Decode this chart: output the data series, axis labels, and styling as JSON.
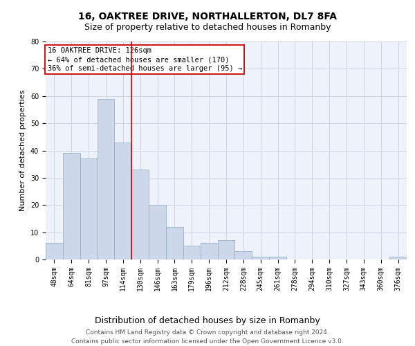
{
  "title": "16, OAKTREE DRIVE, NORTHALLERTON, DL7 8FA",
  "subtitle": "Size of property relative to detached houses in Romanby",
  "xlabel_bottom": "Distribution of detached houses by size in Romanby",
  "ylabel": "Number of detached properties",
  "bar_labels": [
    "48sqm",
    "64sqm",
    "81sqm",
    "97sqm",
    "114sqm",
    "130sqm",
    "146sqm",
    "163sqm",
    "179sqm",
    "196sqm",
    "212sqm",
    "228sqm",
    "245sqm",
    "261sqm",
    "278sqm",
    "294sqm",
    "310sqm",
    "327sqm",
    "343sqm",
    "360sqm",
    "376sqm"
  ],
  "bar_values": [
    6,
    39,
    37,
    59,
    43,
    33,
    20,
    12,
    5,
    6,
    7,
    3,
    1,
    1,
    0,
    0,
    0,
    0,
    0,
    0,
    1
  ],
  "bar_color": "#ccd8ea",
  "bar_edge_color": "#9ab0c8",
  "vline_color": "#cc0000",
  "vline_x_index": 4.5,
  "ylim": [
    0,
    80
  ],
  "yticks": [
    0,
    10,
    20,
    30,
    40,
    50,
    60,
    70,
    80
  ],
  "annotation_line1": "16 OAKTREE DRIVE: 126sqm",
  "annotation_line2": "← 64% of detached houses are smaller (170)",
  "annotation_line3": "36% of semi-detached houses are larger (95) →",
  "footer_line1": "Contains HM Land Registry data © Crown copyright and database right 2024.",
  "footer_line2": "Contains public sector information licensed under the Open Government Licence v3.0.",
  "background_color": "#eef2fa",
  "grid_color": "#c8d0de",
  "title_fontsize": 10,
  "subtitle_fontsize": 9,
  "tick_fontsize": 7,
  "ylabel_fontsize": 8,
  "annotation_fontsize": 7.5,
  "footer_fontsize": 6.5
}
